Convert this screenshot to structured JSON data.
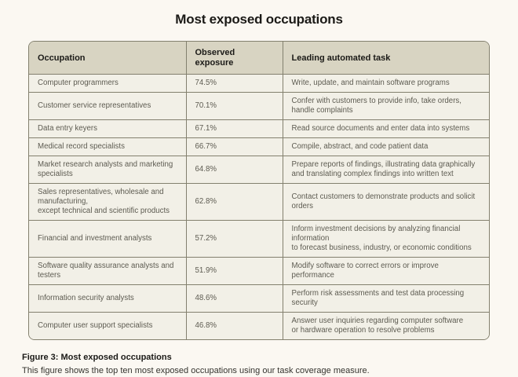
{
  "title": "Most exposed occupations",
  "table": {
    "columns": [
      "Occupation",
      "Observed exposure",
      "Leading automated task"
    ],
    "rows": [
      {
        "occupation": "Computer programmers",
        "exposure": "74.5%",
        "task": "Write, update, and maintain software programs"
      },
      {
        "occupation": "Customer service representatives",
        "exposure": "70.1%",
        "task": "Confer with customers to provide info, take orders, handle complaints"
      },
      {
        "occupation": "Data entry keyers",
        "exposure": "67.1%",
        "task": "Read source documents and enter data into systems"
      },
      {
        "occupation": "Medical record specialists",
        "exposure": "66.7%",
        "task": "Compile, abstract, and code patient data"
      },
      {
        "occupation": "Market research analysts and marketing specialists",
        "exposure": "64.8%",
        "task": "Prepare reports of findings, illustrating data graphically\nand translating complex findings into written text"
      },
      {
        "occupation": "Sales representatives, wholesale and manufacturing,\nexcept technical and scientific products",
        "exposure": "62.8%",
        "task": "Contact customers to demonstrate products and solicit orders"
      },
      {
        "occupation": "Financial and investment analysts",
        "exposure": "57.2%",
        "task": "Inform investment decisions by analyzing financial information\nto forecast business, industry, or economic conditions"
      },
      {
        "occupation": "Software quality assurance analysts and testers",
        "exposure": "51.9%",
        "task": "Modify software to correct errors or improve performance"
      },
      {
        "occupation": "Information security analysts",
        "exposure": "48.6%",
        "task": "Perform risk assessments and test data processing security"
      },
      {
        "occupation": "Computer user support specialists",
        "exposure": "46.8%",
        "task": "Answer user inquiries regarding computer software\nor hardware operation to resolve problems"
      }
    ]
  },
  "caption": {
    "title": "Figure 3: Most exposed occupations",
    "text": "This figure shows the top ten most exposed occupations using our task coverage measure."
  },
  "colors": {
    "page_bg": "#fbf8f2",
    "header_bg": "#d8d4c2",
    "row_bg": "#f2f0e7",
    "border": "#83806e",
    "heading_text": "#1b1a17",
    "cell_text": "#5d5b51",
    "caption_text": "#35342f"
  },
  "chart_data": {
    "type": "table",
    "title": "Most exposed occupations",
    "columns": [
      "Occupation",
      "Observed exposure",
      "Leading automated task"
    ],
    "occupations": [
      "Computer programmers",
      "Customer service representatives",
      "Data entry keyers",
      "Medical record specialists",
      "Market research analysts and marketing specialists",
      "Sales representatives, wholesale and manufacturing, except technical and scientific products",
      "Financial and investment analysts",
      "Software quality assurance analysts and testers",
      "Information security analysts",
      "Computer user support specialists"
    ],
    "observed_exposure_pct": [
      74.5,
      70.1,
      67.1,
      66.7,
      64.8,
      62.8,
      57.2,
      51.9,
      48.6,
      46.8
    ],
    "leading_automated_tasks": [
      "Write, update, and maintain software programs",
      "Confer with customers to provide info, take orders, handle complaints",
      "Read source documents and enter data into systems",
      "Compile, abstract, and code patient data",
      "Prepare reports of findings, illustrating data graphically and translating complex findings into written text",
      "Contact customers to demonstrate products and solicit orders",
      "Inform investment decisions by analyzing financial information to forecast business, industry, or economic conditions",
      "Modify software to correct errors or improve performance",
      "Perform risk assessments and test data processing security",
      "Answer user inquiries regarding computer software or hardware operation to resolve problems"
    ],
    "caption": "Figure 3: Most exposed occupations — This figure shows the top ten most exposed occupations using our task coverage measure."
  }
}
